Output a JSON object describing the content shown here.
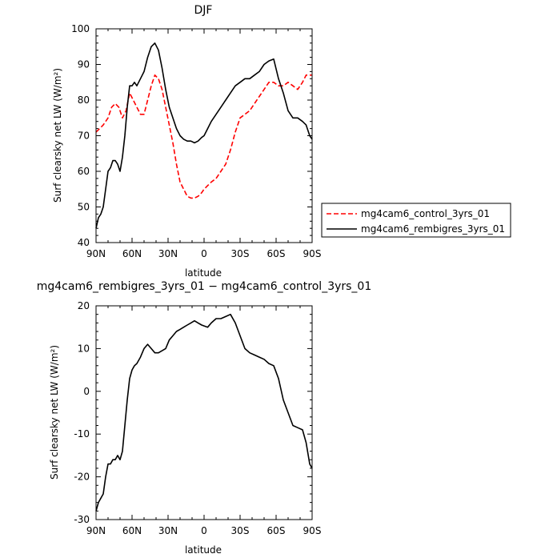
{
  "chart_data": [
    {
      "type": "line",
      "title": "DJF",
      "xlabel": "latitude",
      "ylabel": "Surf clearsky net LW (W/m²)",
      "x_ticks": [
        "90N",
        "60N",
        "30N",
        "0",
        "30S",
        "60S",
        "90S"
      ],
      "x_tick_values": [
        90,
        60,
        30,
        0,
        -30,
        -60,
        -90
      ],
      "xlim": [
        90,
        -90
      ],
      "ylim": [
        40,
        100
      ],
      "y_ticks": [
        40,
        50,
        60,
        70,
        80,
        90,
        100
      ],
      "grid": false,
      "legend_position": "right",
      "series": [
        {
          "name": "mg4cam6_control_3yrs_01",
          "color": "#ff0000",
          "dash": "dashed",
          "x": [
            90,
            87,
            84,
            80,
            77,
            74,
            71,
            68,
            65,
            62,
            59,
            56,
            53,
            50,
            47,
            44,
            41,
            38,
            35,
            32,
            29,
            26,
            23,
            20,
            17,
            14,
            11,
            8,
            5,
            2,
            0,
            -3,
            -6,
            -10,
            -14,
            -18,
            -22,
            -26,
            -30,
            -34,
            -38,
            -42,
            -46,
            -50,
            -54,
            -58,
            -62,
            -66,
            -70,
            -74,
            -78,
            -82,
            -85,
            -88,
            -90
          ],
          "y": [
            71,
            72,
            73,
            75,
            78,
            79,
            78,
            75,
            77,
            82,
            80,
            78,
            76,
            76,
            80,
            84,
            87,
            86,
            83,
            78,
            73,
            68,
            62,
            57,
            55,
            53,
            52.5,
            52.5,
            53,
            54,
            55,
            56,
            57,
            58,
            60,
            62,
            66,
            71,
            75,
            76,
            77,
            79,
            81,
            83,
            85,
            85,
            84,
            84,
            85,
            84,
            83,
            85,
            87,
            87,
            87
          ]
        },
        {
          "name": "mg4cam6_rembigres_3yrs_01",
          "color": "#000000",
          "dash": "solid",
          "x": [
            90,
            88,
            86,
            84,
            82,
            80,
            78,
            76,
            74,
            72,
            70,
            68,
            66,
            64,
            62,
            60,
            58,
            56,
            53,
            50,
            47,
            44,
            41,
            38,
            35,
            32,
            29,
            26,
            23,
            20,
            17,
            14,
            11,
            8,
            5,
            2,
            0,
            -3,
            -6,
            -10,
            -14,
            -18,
            -22,
            -26,
            -30,
            -34,
            -38,
            -42,
            -46,
            -50,
            -54,
            -58,
            -62,
            -66,
            -70,
            -74,
            -78,
            -82,
            -85,
            -88,
            -90
          ],
          "y": [
            44,
            47,
            48,
            50,
            55,
            60,
            61,
            63,
            63,
            62,
            60,
            64,
            70,
            78,
            84,
            84,
            85,
            84,
            86,
            88,
            92,
            95,
            96,
            94,
            89,
            83,
            78,
            75,
            72,
            70,
            69,
            68.5,
            68.5,
            68,
            68.5,
            69.5,
            70,
            72,
            74,
            76,
            78,
            80,
            82,
            84,
            85,
            86,
            86,
            87,
            88,
            90,
            91,
            91.5,
            86,
            82,
            77,
            75,
            75,
            74,
            73,
            70,
            69
          ]
        }
      ]
    },
    {
      "type": "line",
      "title": "mg4cam6_rembigres_3yrs_01 − mg4cam6_control_3yrs_01",
      "xlabel": "latitude",
      "ylabel": "Surf clearsky net LW (W/m²)",
      "x_ticks": [
        "90N",
        "60N",
        "30N",
        "0",
        "30S",
        "60S",
        "90S"
      ],
      "x_tick_values": [
        90,
        60,
        30,
        0,
        -30,
        -60,
        -90
      ],
      "xlim": [
        90,
        -90
      ],
      "ylim": [
        -30,
        20
      ],
      "y_ticks": [
        -30,
        -20,
        -10,
        0,
        10,
        20
      ],
      "grid": false,
      "series": [
        {
          "color": "#000000",
          "dash": "solid",
          "x": [
            90,
            88,
            86,
            84,
            82,
            80,
            78,
            76,
            74,
            72,
            70,
            68,
            66,
            64,
            62,
            60,
            58,
            56,
            53,
            50,
            47,
            44,
            41,
            38,
            35,
            32,
            29,
            26,
            23,
            20,
            17,
            14,
            11,
            8,
            5,
            2,
            0,
            -3,
            -6,
            -10,
            -14,
            -18,
            -22,
            -26,
            -30,
            -34,
            -38,
            -42,
            -46,
            -50,
            -54,
            -58,
            -62,
            -66,
            -70,
            -74,
            -78,
            -82,
            -85,
            -88,
            -90
          ],
          "y": [
            -28,
            -26,
            -25,
            -24,
            -20,
            -17,
            -17,
            -16,
            -16,
            -15,
            -16,
            -14,
            -8,
            -2,
            3,
            5,
            6,
            6.5,
            8,
            10,
            11,
            10,
            9,
            9,
            9.5,
            10,
            12,
            13,
            14,
            14.5,
            15,
            15.5,
            16,
            16.5,
            16,
            15.5,
            15.3,
            15,
            16,
            17,
            17,
            17.5,
            18,
            16,
            13,
            10,
            9,
            8.5,
            8,
            7.5,
            6.5,
            6,
            3,
            -2,
            -5,
            -8,
            -8.5,
            -9,
            -12,
            -17,
            -18
          ]
        }
      ]
    }
  ]
}
